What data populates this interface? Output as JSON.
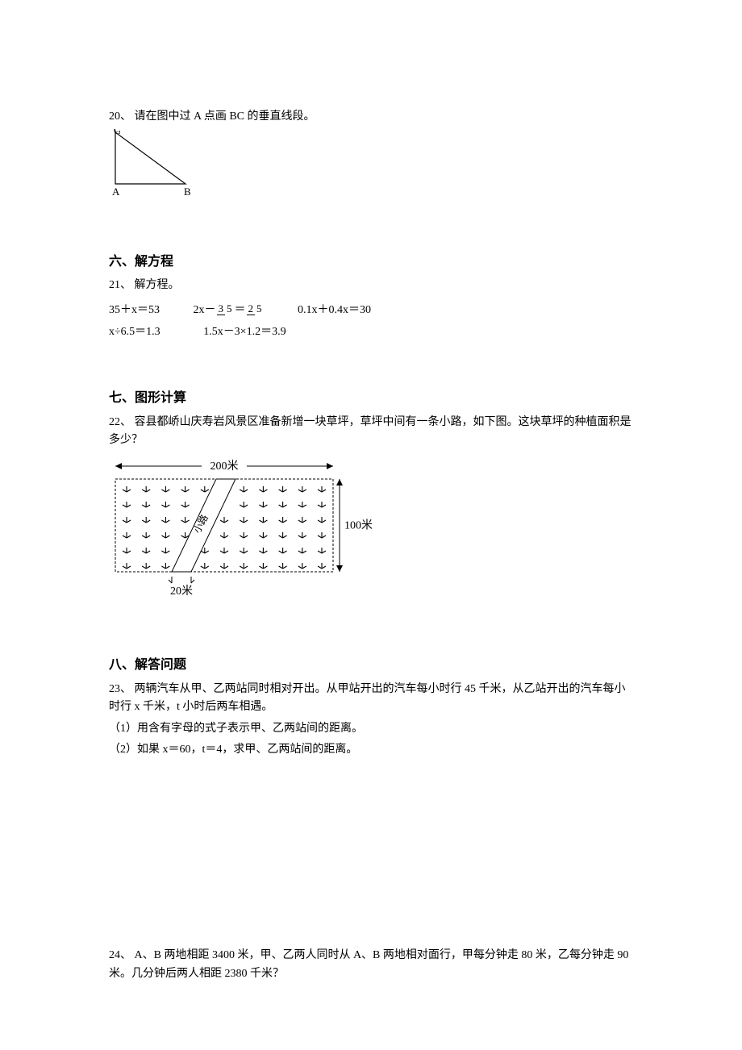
{
  "q20": {
    "label": "20、 请在图中过 A 点画 BC 的垂直线段。",
    "triangle": {
      "labels": {
        "A": "A",
        "B": "B",
        "C": "C"
      },
      "stroke": "#000000",
      "stroke_width": 1.2,
      "points": {
        "A": [
          8,
          68
        ],
        "B": [
          95,
          68
        ],
        "C": [
          8,
          4
        ]
      }
    }
  },
  "sec6": {
    "heading": "六、解方程",
    "q21": {
      "label": "21、 解方程。",
      "row1": {
        "eq1": "35＋x＝53",
        "eq2_pre": "2x－",
        "eq2_frac1_num": "3",
        "eq2_frac1_den": "5",
        "eq2_mid": "＝",
        "eq2_frac2_num": "2",
        "eq2_frac2_den": "5",
        "eq3": "0.1x＋0.4x＝30"
      },
      "row2": {
        "eq1": "x÷6.5＝1.3",
        "eq2": "1.5x－3×1.2＝3.9"
      }
    }
  },
  "sec7": {
    "heading": "七、图形计算",
    "q22": {
      "label": "22、 容县都峤山庆寿岩风景区准备新增一块草坪，草坪中间有一条小路，如下图。这块草坪的种植面积是多少？",
      "diagram": {
        "width_label": "200米",
        "height_label": "100米",
        "path_width_label": "20米",
        "path_label": "小路",
        "outer_rect": {
          "stroke": "#000000",
          "dash": "3,2",
          "fill": "none"
        },
        "grass_rows": 6,
        "grass_cols": 11,
        "grass_symbol_color": "#000000",
        "grass_symbol_stroke": 1.1
      }
    }
  },
  "sec8": {
    "heading": "八、解答问题",
    "q23": {
      "label": "23、 两辆汽车从甲、乙两站同时相对开出。从甲站开出的汽车每小时行 45 千米，从乙站开出的汽车每小时行 x 千米，t 小时后两车相遇。",
      "p1": "（1）用含有字母的式子表示甲、乙两站间的距离。",
      "p2": "（2）如果 x＝60，t＝4，求甲、乙两站间的距离。"
    },
    "q24": {
      "label": "24、 A、B 两地相距 3400 米，甲、乙两人同时从 A、B 两地相对面行，甲每分钟走 80 米，乙每分钟走 90 米。几分钟后两人相距 2380 千米？"
    }
  }
}
